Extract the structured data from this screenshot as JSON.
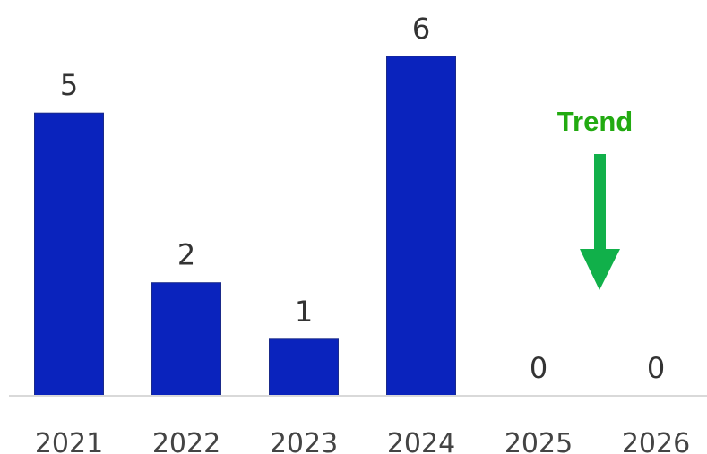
{
  "chart_data": {
    "type": "bar",
    "categories": [
      "2021",
      "2022",
      "2023",
      "2024",
      "2025",
      "2026"
    ],
    "values": [
      5,
      2,
      1,
      6,
      0,
      0
    ],
    "title": "",
    "xlabel": "",
    "ylabel": "",
    "ylim": [
      0,
      6
    ],
    "grid": false,
    "legend": "none",
    "bar_color": "#0a23bd",
    "annotation": {
      "text": "Trend",
      "color": "#22aa11",
      "arrow_color": "#11b04a",
      "arrow_direction": "down"
    }
  }
}
